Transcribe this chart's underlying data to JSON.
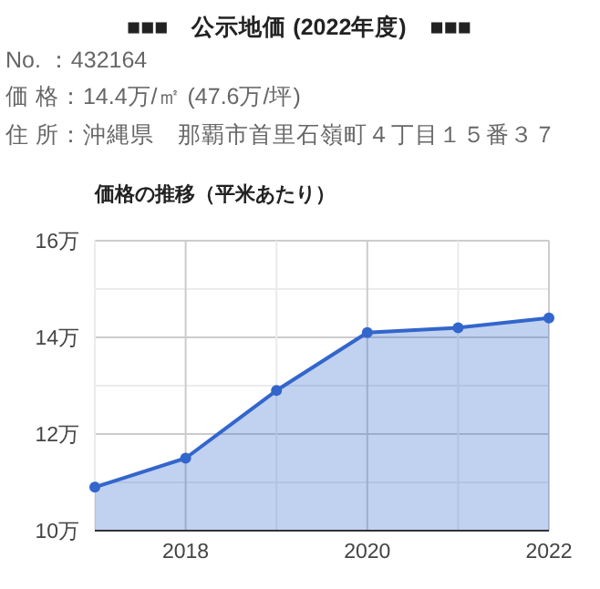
{
  "chart_data": {
    "type": "area",
    "title": "価格の推移（平米あたり）",
    "annotations": [
      "■■■　公示地価 (2022年度)　■■■",
      "No. ：432164",
      "価 格：14.4万/㎡ (47.6万/坪)",
      "住 所：沖縄県　那覇市首里石嶺町４丁目１５番３７"
    ],
    "x": [
      2017,
      2018,
      2019,
      2020,
      2021,
      2022
    ],
    "series": [
      {
        "color": "#3366cc",
        "values": [
          10.9,
          11.5,
          12.9,
          14.1,
          14.2,
          14.4
        ]
      }
    ],
    "xlim": [
      2017,
      2022
    ],
    "xticks": [
      {
        "value": 2017,
        "label": null
      },
      2018,
      {
        "value": 2019,
        "label": null
      },
      2020,
      {
        "value": 2021,
        "label": null
      },
      2022
    ],
    "ylim": [
      10,
      16
    ],
    "yticks": [
      {
        "value": 10,
        "label": "10万"
      },
      {
        "value": 11,
        "label": null
      },
      {
        "value": 12,
        "label": "12万"
      },
      {
        "value": 13,
        "label": null
      },
      {
        "value": 14,
        "label": "14万"
      },
      {
        "value": 15,
        "label": null
      },
      {
        "value": 16,
        "label": "16万"
      }
    ],
    "grid": true,
    "marker": "circle"
  }
}
